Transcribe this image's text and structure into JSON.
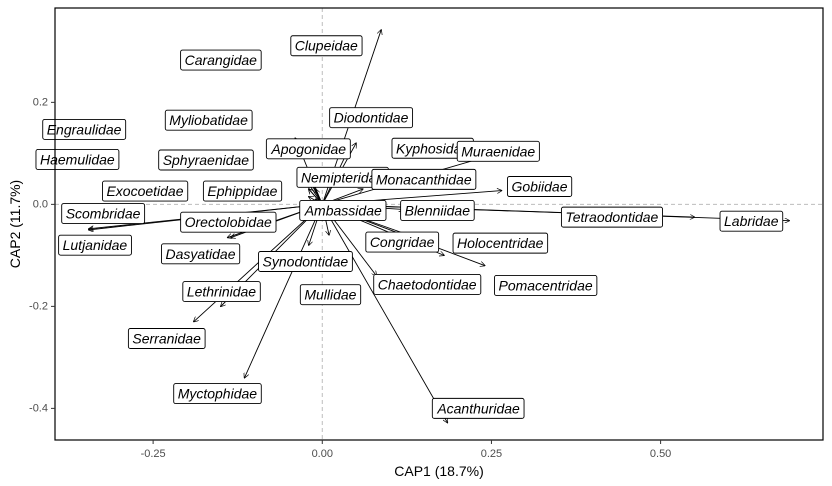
{
  "chart_data": {
    "type": "scatter",
    "title": "",
    "xlabel": "CAP1 (18.7%)",
    "ylabel": "CAP2 (11.7%)",
    "xlim": [
      -0.395,
      0.74
    ],
    "ylim": [
      -0.462,
      0.385
    ],
    "x_ticks": [
      -0.25,
      0.0,
      0.25,
      0.5
    ],
    "x_tick_labels": [
      "-0.25",
      "0.00",
      "0.25",
      "0.50"
    ],
    "y_ticks": [
      -0.4,
      -0.2,
      0.0,
      0.2
    ],
    "y_tick_labels": [
      "-0.4",
      "-0.2",
      "0.0",
      "0.2"
    ],
    "reference_lines": {
      "x": 0,
      "y": 0,
      "style": "dashed"
    },
    "grid": false,
    "legend": "none",
    "vectors": [
      {
        "name": "Clupeidae",
        "x": 0.087,
        "y": 0.342,
        "label_x": 0.006,
        "label_y": 0.311
      },
      {
        "name": "Carangidae",
        "x": -0.04,
        "y": 0.13,
        "label_x": -0.15,
        "label_y": 0.283
      },
      {
        "name": "Diodontidae",
        "x": 0.036,
        "y": 0.1,
        "label_x": 0.072,
        "label_y": 0.17
      },
      {
        "name": "Myliobatidae",
        "x": -0.025,
        "y": 0.07,
        "label_x": -0.168,
        "label_y": 0.165
      },
      {
        "name": "Engraulidae",
        "x": -0.02,
        "y": 0.05,
        "label_x": -0.352,
        "label_y": 0.147
      },
      {
        "name": "Kyphosidae",
        "x": 0.05,
        "y": 0.12,
        "label_x": 0.163,
        "label_y": 0.11
      },
      {
        "name": "Apogonidae",
        "x": -0.02,
        "y": 0.04,
        "label_x": -0.02,
        "label_y": 0.109
      },
      {
        "name": "Muraenidae",
        "x": 0.26,
        "y": 0.1,
        "label_x": 0.26,
        "label_y": 0.104
      },
      {
        "name": "Haemulidae",
        "x": -0.02,
        "y": 0.03,
        "label_x": -0.362,
        "label_y": 0.088
      },
      {
        "name": "Sphyraenidae",
        "x": -0.02,
        "y": 0.03,
        "label_x": -0.172,
        "label_y": 0.087
      },
      {
        "name": "Nemipteridae",
        "x": -0.01,
        "y": 0.03,
        "label_x": 0.03,
        "label_y": 0.053
      },
      {
        "name": "Monacanthidae",
        "x": 0.06,
        "y": 0.03,
        "label_x": 0.15,
        "label_y": 0.049
      },
      {
        "name": "Gobiidae",
        "x": 0.265,
        "y": 0.027,
        "label_x": 0.321,
        "label_y": 0.035
      },
      {
        "name": "Exocoetidae",
        "x": -0.02,
        "y": 0.015,
        "label_x": -0.262,
        "label_y": 0.026
      },
      {
        "name": "Ephippidae",
        "x": -0.01,
        "y": 0.01,
        "label_x": -0.118,
        "label_y": 0.026
      },
      {
        "name": "Ambassidae",
        "x": 0.01,
        "y": -0.005,
        "label_x": 0.031,
        "label_y": -0.012
      },
      {
        "name": "Blenniidae",
        "x": 0.12,
        "y": -0.01,
        "label_x": 0.17,
        "label_y": -0.012
      },
      {
        "name": "Scombridae",
        "x": -0.345,
        "y": -0.048,
        "label_x": -0.324,
        "label_y": -0.018
      },
      {
        "name": "Orectolobidae",
        "x": -0.14,
        "y": -0.065,
        "label_x": -0.139,
        "label_y": -0.035
      },
      {
        "name": "Tetraodontidae",
        "x": 0.55,
        "y": -0.025,
        "label_x": 0.428,
        "label_y": -0.025
      },
      {
        "name": "Labridae",
        "x": 0.69,
        "y": -0.032,
        "label_x": 0.634,
        "label_y": -0.033
      },
      {
        "name": "Lutjanidae",
        "x": -0.345,
        "y": -0.05,
        "label_x": -0.336,
        "label_y": -0.08
      },
      {
        "name": "Congridae",
        "x": 0.17,
        "y": -0.08,
        "label_x": 0.118,
        "label_y": -0.074
      },
      {
        "name": "Holocentridae",
        "x": 0.18,
        "y": -0.1,
        "label_x": 0.263,
        "label_y": -0.076
      },
      {
        "name": "Dasyatidae",
        "x": -0.135,
        "y": -0.065,
        "label_x": -0.18,
        "label_y": -0.097
      },
      {
        "name": "Synodontidae",
        "x": -0.02,
        "y": -0.08,
        "label_x": -0.025,
        "label_y": -0.112
      },
      {
        "name": "Chaetodontidae",
        "x": 0.08,
        "y": -0.14,
        "label_x": 0.155,
        "label_y": -0.157
      },
      {
        "name": "Pomacentridae",
        "x": 0.24,
        "y": -0.12,
        "label_x": 0.33,
        "label_y": -0.159
      },
      {
        "name": "Lethrinidae",
        "x": -0.19,
        "y": -0.23,
        "label_x": -0.149,
        "label_y": -0.171
      },
      {
        "name": "Mullidae",
        "x": 0.01,
        "y": -0.06,
        "label_x": 0.012,
        "label_y": -0.177
      },
      {
        "name": "Serranidae",
        "x": -0.15,
        "y": -0.2,
        "label_x": -0.23,
        "label_y": -0.263
      },
      {
        "name": "Myctophidae",
        "x": -0.115,
        "y": -0.34,
        "label_x": -0.155,
        "label_y": -0.371
      },
      {
        "name": "Acanthuridae",
        "x": 0.185,
        "y": -0.428,
        "label_x": 0.231,
        "label_y": -0.4
      }
    ]
  }
}
